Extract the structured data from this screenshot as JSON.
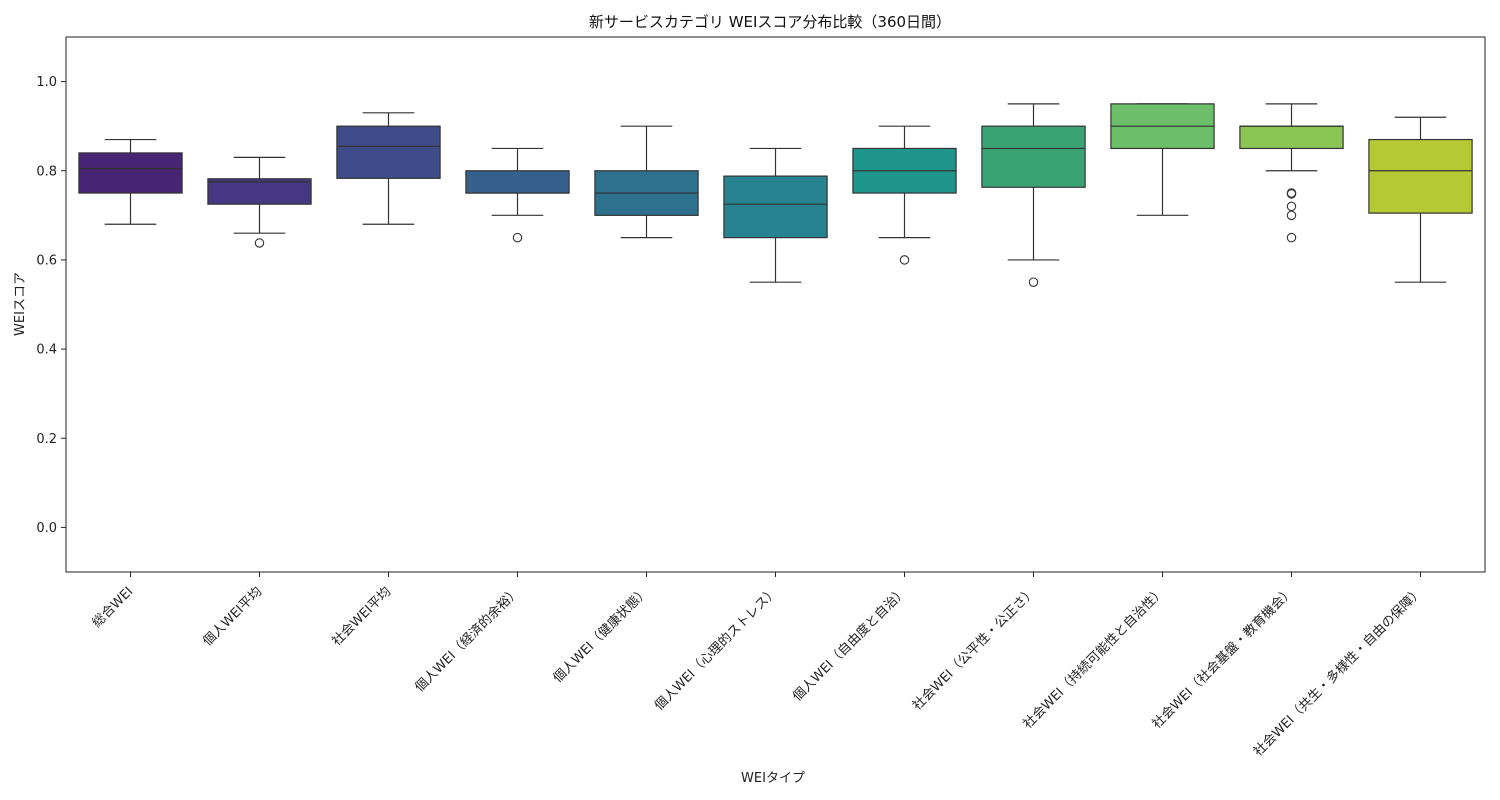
{
  "chart_data": {
    "type": "box",
    "title": "新サービスカテゴリ WEIスコア分布比較（360日間）",
    "xlabel": "WEIタイプ",
    "ylabel": "WEIスコア",
    "ylim": [
      -0.1,
      1.1
    ],
    "yticks": [
      0.0,
      0.2,
      0.4,
      0.6,
      0.8,
      1.0
    ],
    "ytick_labels": [
      "0.0",
      "0.2",
      "0.4",
      "0.6",
      "0.8",
      "1.0"
    ],
    "grid": false,
    "categories": [
      "総合WEI",
      "個人WEI平均",
      "社会WEI平均",
      "個人WEI（経済的余裕）",
      "個人WEI（健康状態）",
      "個人WEI（心理的ストレス）",
      "個人WEI（自由度と自治）",
      "社会WEI（公平性・公正さ）",
      "社会WEI（持続可能性と自治性）",
      "社会WEI（社会基盤・教育機会）",
      "社会WEI（共生・多様性・自由の保障）"
    ],
    "boxes": [
      {
        "whisker_low": 0.68,
        "q1": 0.75,
        "median": 0.805,
        "q3": 0.84,
        "whisker_high": 0.87,
        "outliers": [],
        "color": "#482475"
      },
      {
        "whisker_low": 0.66,
        "q1": 0.725,
        "median": 0.775,
        "q3": 0.782,
        "whisker_high": 0.83,
        "outliers": [
          0.638
        ],
        "color": "#453781"
      },
      {
        "whisker_low": 0.68,
        "q1": 0.783,
        "median": 0.855,
        "q3": 0.9,
        "whisker_high": 0.93,
        "outliers": [],
        "color": "#3e4c8a"
      },
      {
        "whisker_low": 0.7,
        "q1": 0.75,
        "median": 0.75,
        "q3": 0.8,
        "whisker_high": 0.85,
        "outliers": [
          0.65
        ],
        "color": "#35608d"
      },
      {
        "whisker_low": 0.65,
        "q1": 0.7,
        "median": 0.75,
        "q3": 0.8,
        "whisker_high": 0.9,
        "outliers": [],
        "color": "#2e718e"
      },
      {
        "whisker_low": 0.55,
        "q1": 0.65,
        "median": 0.725,
        "q3": 0.788,
        "whisker_high": 0.85,
        "outliers": [],
        "color": "#26838f"
      },
      {
        "whisker_low": 0.65,
        "q1": 0.75,
        "median": 0.8,
        "q3": 0.85,
        "whisker_high": 0.9,
        "outliers": [
          0.6
        ],
        "color": "#1f968b"
      },
      {
        "whisker_low": 0.6,
        "q1": 0.763,
        "median": 0.85,
        "q3": 0.9,
        "whisker_high": 0.95,
        "outliers": [
          0.55
        ],
        "color": "#3ba475"
      },
      {
        "whisker_low": 0.7,
        "q1": 0.85,
        "median": 0.9,
        "q3": 0.95,
        "whisker_high": 0.95,
        "outliers": [],
        "color": "#6cbf68"
      },
      {
        "whisker_low": 0.8,
        "q1": 0.85,
        "median": 0.9,
        "q3": 0.9,
        "whisker_high": 0.95,
        "outliers": [
          0.75,
          0.748,
          0.72,
          0.7,
          0.65
        ],
        "color": "#8bc654"
      },
      {
        "whisker_low": 0.55,
        "q1": 0.705,
        "median": 0.8,
        "q3": 0.87,
        "whisker_high": 0.92,
        "outliers": [],
        "color": "#b5c934"
      }
    ]
  }
}
